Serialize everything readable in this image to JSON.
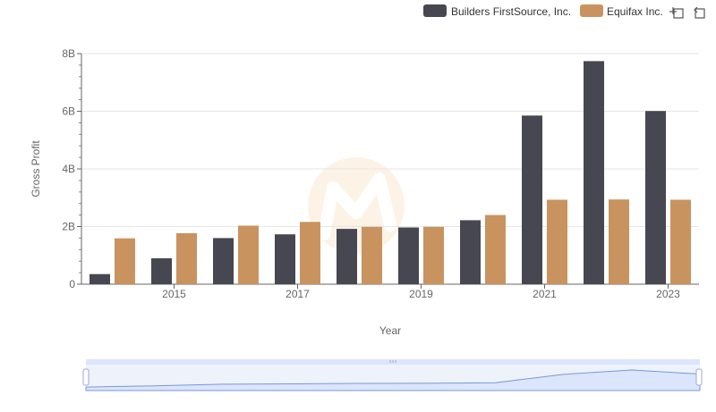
{
  "chart_data": {
    "type": "bar",
    "title": "",
    "xlabel": "Year",
    "ylabel": "Gross Profit",
    "x": [
      2014,
      2015,
      2016,
      2017,
      2018,
      2019,
      2020,
      2021,
      2022,
      2023
    ],
    "x_tick_labels": [
      "2015",
      "2017",
      "2019",
      "2021",
      "2023"
    ],
    "y_tick_labels": [
      "0",
      "2B",
      "4B",
      "6B",
      "8B"
    ],
    "ylim": [
      0,
      8000000000
    ],
    "grid": true,
    "legend_position": "top-right",
    "series": [
      {
        "name": "Builders FirstSource, Inc.",
        "color": "#474752",
        "values": [
          350000000,
          900000000,
          1600000000,
          1730000000,
          1920000000,
          1970000000,
          2220000000,
          5850000000,
          7740000000,
          6010000000
        ]
      },
      {
        "name": "Equifax Inc.",
        "color": "#c9935f",
        "values": [
          1590000000,
          1770000000,
          2030000000,
          2160000000,
          1990000000,
          1990000000,
          2400000000,
          2930000000,
          2940000000,
          2930000000
        ]
      }
    ]
  },
  "toolbar": {
    "icons": [
      "zoom-select-icon",
      "zoom-reset-icon"
    ]
  },
  "navigator": {
    "colors": {
      "fill": "#dbe5fb",
      "line": "#7898d8",
      "mask": "#eef2fb",
      "handle": "#ffffff"
    }
  }
}
